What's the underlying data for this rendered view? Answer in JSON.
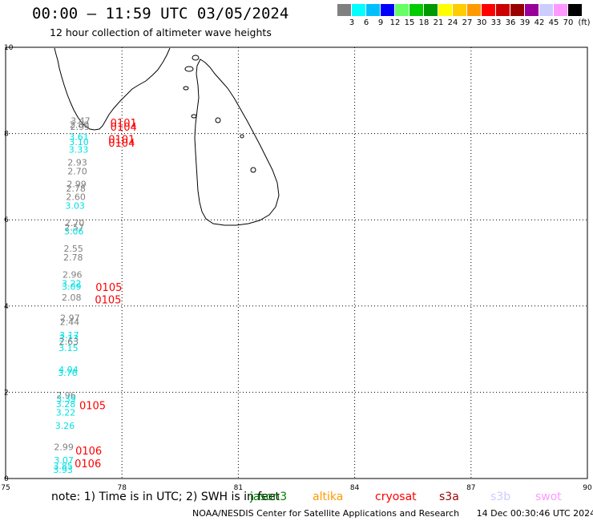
{
  "header": {
    "title": "00:00 — 11:59 UTC 03/05/2024",
    "subtitle": "12 hour collection of altimeter wave heights"
  },
  "scale": {
    "colors": [
      "#808080",
      "#00ffff",
      "#00bfff",
      "#0000ff",
      "#66ff66",
      "#00cc00",
      "#009900",
      "#ffff00",
      "#ffcc00",
      "#ff9900",
      "#ff0000",
      "#cc0000",
      "#990000",
      "#990099",
      "#ccccff",
      "#ff99ff",
      "#000000"
    ],
    "labels": [
      "3",
      "6",
      "9",
      "12",
      "15",
      "18",
      "21",
      "24",
      "27",
      "30",
      "33",
      "36",
      "39",
      "42",
      "45",
      "70",
      "(ft)"
    ]
  },
  "map": {
    "lon_range": [
      75,
      90
    ],
    "lat_range": [
      0,
      10
    ],
    "x_ticks": [
      "75",
      "78",
      "81",
      "84",
      "87",
      "90"
    ],
    "y_ticks": [
      "0",
      "2",
      "4",
      "6",
      "8",
      "10"
    ],
    "grid": "dotted"
  },
  "wave_labels": [
    {
      "text": "3.47",
      "lon": 76.93,
      "lat": 8.3,
      "color": "#808080"
    },
    {
      "text": "2.80",
      "lon": 76.9,
      "lat": 8.21,
      "color": "#808080"
    },
    {
      "text": "2.95",
      "lon": 76.92,
      "lat": 8.16,
      "color": "#808080"
    },
    {
      "text": "3.61",
      "lon": 76.89,
      "lat": 7.93,
      "color": "#00e0e0"
    },
    {
      "text": "3.10",
      "lon": 76.89,
      "lat": 7.81,
      "color": "#00e0e0"
    },
    {
      "text": "3.33",
      "lon": 76.88,
      "lat": 7.63,
      "color": "#00e0e0"
    },
    {
      "text": "2.93",
      "lon": 76.85,
      "lat": 7.33,
      "color": "#808080"
    },
    {
      "text": "2.70",
      "lon": 76.85,
      "lat": 7.13,
      "color": "#808080"
    },
    {
      "text": "2.99",
      "lon": 76.83,
      "lat": 6.83,
      "color": "#808080"
    },
    {
      "text": "2.78",
      "lon": 76.81,
      "lat": 6.73,
      "color": "#808080"
    },
    {
      "text": "2.60",
      "lon": 76.81,
      "lat": 6.53,
      "color": "#808080"
    },
    {
      "text": "3.03",
      "lon": 76.79,
      "lat": 6.33,
      "color": "#00e0e0"
    },
    {
      "text": "2.70",
      "lon": 76.78,
      "lat": 5.93,
      "color": "#808080"
    },
    {
      "text": "2.57",
      "lon": 76.77,
      "lat": 5.83,
      "color": "#808080"
    },
    {
      "text": "3.06",
      "lon": 76.76,
      "lat": 5.73,
      "color": "#00e0e0"
    },
    {
      "text": "2.55",
      "lon": 76.75,
      "lat": 5.33,
      "color": "#808080"
    },
    {
      "text": "2.78",
      "lon": 76.74,
      "lat": 5.13,
      "color": "#808080"
    },
    {
      "text": "2.96",
      "lon": 76.72,
      "lat": 4.73,
      "color": "#808080"
    },
    {
      "text": "3.22",
      "lon": 76.7,
      "lat": 4.53,
      "color": "#00e0e0"
    },
    {
      "text": "3.09",
      "lon": 76.7,
      "lat": 4.45,
      "color": "#00e0e0"
    },
    {
      "text": "2.08",
      "lon": 76.7,
      "lat": 4.2,
      "color": "#808080"
    },
    {
      "text": "2.97",
      "lon": 76.66,
      "lat": 3.73,
      "color": "#808080"
    },
    {
      "text": "2.44",
      "lon": 76.65,
      "lat": 3.63,
      "color": "#808080"
    },
    {
      "text": "3.17",
      "lon": 76.64,
      "lat": 3.33,
      "color": "#00e0e0"
    },
    {
      "text": "3.13",
      "lon": 76.63,
      "lat": 3.25,
      "color": "#00e0e0"
    },
    {
      "text": "2.63",
      "lon": 76.63,
      "lat": 3.18,
      "color": "#808080"
    },
    {
      "text": "3.15",
      "lon": 76.62,
      "lat": 3.03,
      "color": "#00e0e0"
    },
    {
      "text": "4.04",
      "lon": 76.62,
      "lat": 2.53,
      "color": "#00e0e0"
    },
    {
      "text": "3.76",
      "lon": 76.6,
      "lat": 2.45,
      "color": "#00e0e0"
    },
    {
      "text": "2.96",
      "lon": 76.56,
      "lat": 1.93,
      "color": "#808080"
    },
    {
      "text": "3.39",
      "lon": 76.56,
      "lat": 1.85,
      "color": "#00e0e0"
    },
    {
      "text": "3.28",
      "lon": 76.55,
      "lat": 1.73,
      "color": "#00e0e0"
    },
    {
      "text": "3.22",
      "lon": 76.55,
      "lat": 1.53,
      "color": "#00e0e0"
    },
    {
      "text": "3.26",
      "lon": 76.53,
      "lat": 1.23,
      "color": "#00e0e0"
    },
    {
      "text": "2.99",
      "lon": 76.5,
      "lat": 0.73,
      "color": "#808080"
    },
    {
      "text": "3.07",
      "lon": 76.5,
      "lat": 0.43,
      "color": "#00e0e0"
    },
    {
      "text": "3.85",
      "lon": 76.48,
      "lat": 0.3,
      "color": "#00e0e0"
    },
    {
      "text": "3.93",
      "lon": 76.48,
      "lat": 0.2,
      "color": "#00e0e0"
    }
  ],
  "pass_labels": [
    {
      "text": "0101",
      "lon": 77.7,
      "lat": 8.25,
      "color": "#ff0000"
    },
    {
      "text": "0104",
      "lon": 77.7,
      "lat": 8.16,
      "color": "#ff0000"
    },
    {
      "text": "0101",
      "lon": 77.65,
      "lat": 7.87,
      "color": "#ff0000"
    },
    {
      "text": "0104",
      "lon": 77.65,
      "lat": 7.79,
      "color": "#ff0000"
    },
    {
      "text": "0105",
      "lon": 77.32,
      "lat": 4.44,
      "color": "#ff0000"
    },
    {
      "text": "0105",
      "lon": 77.3,
      "lat": 4.15,
      "color": "#ff0000"
    },
    {
      "text": "0105",
      "lon": 76.9,
      "lat": 1.7,
      "color": "#ff0000"
    },
    {
      "text": "0106",
      "lon": 76.8,
      "lat": 0.65,
      "color": "#ff0000"
    },
    {
      "text": "0106",
      "lon": 76.78,
      "lat": 0.35,
      "color": "#ff0000"
    }
  ],
  "note": {
    "text": "note: 1) Time is in UTC; 2) SWH is in feet",
    "satellites": [
      {
        "name": "jason3",
        "color": "#008000"
      },
      {
        "name": "altika",
        "color": "#ff9900"
      },
      {
        "name": "cryosat",
        "color": "#ff0000"
      },
      {
        "name": "s3a",
        "color": "#990000"
      },
      {
        "name": "s3b",
        "color": "#ccccff"
      },
      {
        "name": "swot",
        "color": "#ff99ff"
      }
    ]
  },
  "footer": {
    "credit": "NOAA/NESDIS Center for Satellite Applications and Research",
    "timestamp": "14 Dec 00:30:46 UTC 2024"
  }
}
